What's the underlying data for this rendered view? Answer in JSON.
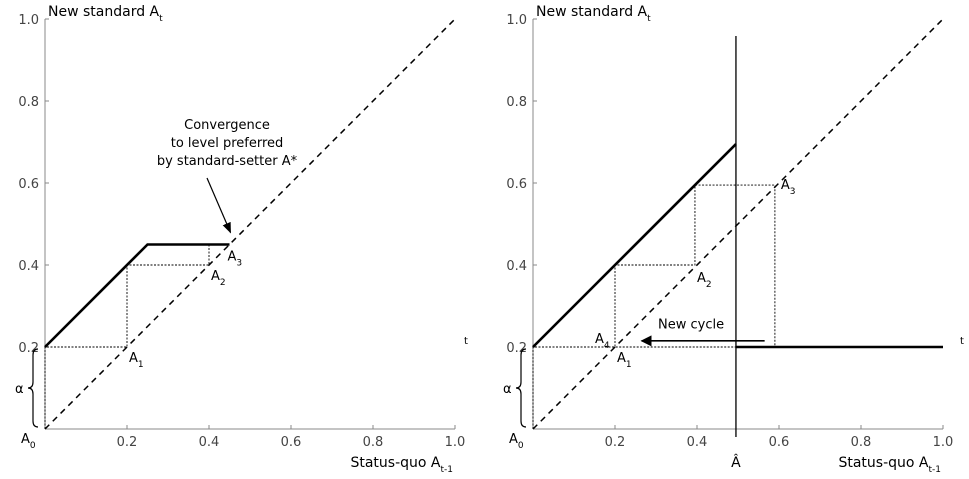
{
  "chart_data": [
    {
      "type": "line",
      "ylabel": "New standard A",
      "ylabel_sub": "t",
      "xlabel": "Status-quo A",
      "xlabel_sub": "t-1",
      "xlim": [
        0,
        1.0
      ],
      "ylim": [
        0,
        1.0
      ],
      "x_ticks": [
        0.2,
        0.4,
        0.6,
        0.8,
        1.0
      ],
      "x_tick_labels": [
        "0.2",
        "0.4",
        "0.6",
        "0.8",
        "1.0"
      ],
      "y_ticks": [
        0.2,
        0.4,
        0.6,
        0.8,
        1.0
      ],
      "y_tick_labels": [
        "0.2",
        "0.4",
        "0.6",
        "0.8",
        "1.0"
      ],
      "series": [
        {
          "style": "dashed",
          "x": [
            0,
            1.0
          ],
          "y": [
            0,
            1.0
          ]
        },
        {
          "style": "thick",
          "x": [
            0,
            0.25,
            0.45
          ],
          "y": [
            0.2,
            0.45,
            0.45
          ]
        },
        {
          "style": "cobweb",
          "x": [
            0,
            0,
            0.2,
            0.2,
            0.4,
            0.4,
            0.45
          ],
          "y": [
            0,
            0.2,
            0.2,
            0.4,
            0.4,
            0.45,
            0.45
          ]
        }
      ],
      "point_labels": [
        {
          "text": "A",
          "sub": "0",
          "x": 0,
          "y": 0
        },
        {
          "text": "A",
          "sub": "1",
          "x": 0.2,
          "y": 0.2
        },
        {
          "text": "A",
          "sub": "2",
          "x": 0.4,
          "y": 0.4
        },
        {
          "text": "A",
          "sub": "3",
          "x": 0.45,
          "y": 0.45
        }
      ],
      "alpha_label": "α",
      "stray_label": "t",
      "annotation": {
        "lines": [
          "Convergence",
          "to level preferred",
          "by standard-setter A*"
        ],
        "arrow_to": [
          0.45,
          0.45
        ]
      }
    },
    {
      "type": "line",
      "ylabel": "New standard A",
      "ylabel_sub": "t",
      "xlabel": "Status-quo A",
      "xlabel_sub": "t-1",
      "xlim": [
        0,
        1.0
      ],
      "ylim": [
        0,
        1.0
      ],
      "x_ticks": [
        0.2,
        0.4,
        0.6,
        0.8,
        1.0
      ],
      "x_tick_labels": [
        "0.2",
        "0.4",
        "0.6",
        "0.8",
        "1.0"
      ],
      "y_ticks": [
        0.2,
        0.4,
        0.6,
        0.8,
        1.0
      ],
      "y_tick_labels": [
        "0.2",
        "0.4",
        "0.6",
        "0.8",
        "1.0"
      ],
      "vline": {
        "x": 0.495,
        "label": "Â"
      },
      "series": [
        {
          "style": "dashed",
          "x": [
            0,
            1.0
          ],
          "y": [
            0,
            1.0
          ]
        },
        {
          "style": "thick",
          "x": [
            0,
            0.495
          ],
          "y": [
            0.2,
            0.695
          ]
        },
        {
          "style": "thick",
          "x": [
            0.495,
            1.0
          ],
          "y": [
            0.2,
            0.2
          ]
        },
        {
          "style": "cobweb",
          "x": [
            0,
            0,
            0.2,
            0.2,
            0.395,
            0.395,
            0.59,
            0.59,
            0.2,
            0.2
          ],
          "y": [
            0,
            0.2,
            0.2,
            0.4,
            0.4,
            0.595,
            0.595,
            0.2,
            0.2,
            0.2
          ]
        }
      ],
      "point_labels": [
        {
          "text": "A",
          "sub": "0",
          "x": 0,
          "y": 0
        },
        {
          "text": "A",
          "sub": "1",
          "x": 0.2,
          "y": 0.2
        },
        {
          "text": "A",
          "sub": "2",
          "x": 0.395,
          "y": 0.395
        },
        {
          "text": "A",
          "sub": "3",
          "x": 0.59,
          "y": 0.59
        },
        {
          "text": "A",
          "sub": "4",
          "x": 0.2,
          "y": 0.2
        }
      ],
      "alpha_label": "α",
      "stray_label": "t",
      "annotation": {
        "lines": [
          "New cycle"
        ],
        "arrow_from": [
          0.565,
          0.215
        ],
        "arrow_to": [
          0.265,
          0.215
        ]
      }
    }
  ]
}
